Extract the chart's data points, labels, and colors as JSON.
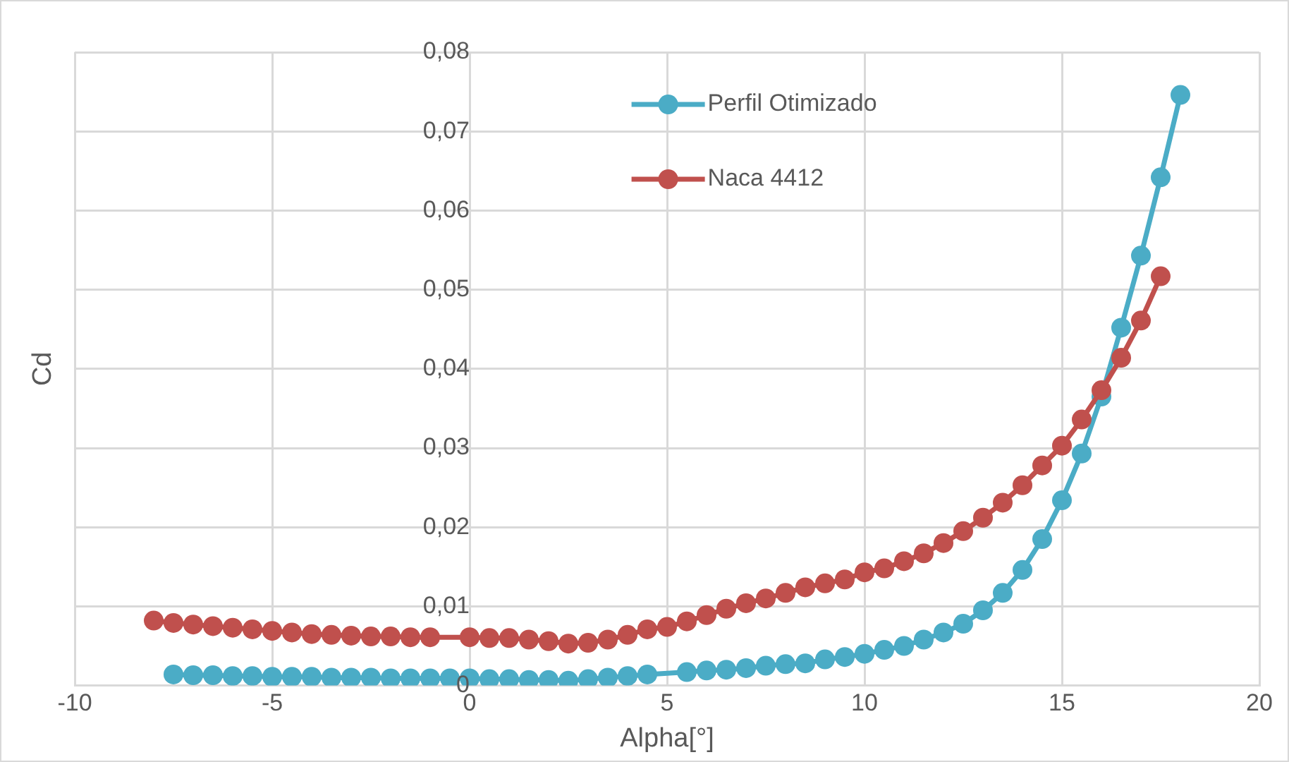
{
  "chart_data": {
    "type": "line",
    "xlabel": "Alpha[°]",
    "ylabel": "Cd",
    "xlim": [
      -10,
      20
    ],
    "xticks": [
      -10,
      -5,
      0,
      5,
      10,
      15,
      20
    ],
    "ylim": [
      0,
      0.08
    ],
    "yticks": [
      {
        "value": 0,
        "label": "0"
      },
      {
        "value": 0.01,
        "label": "0,01"
      },
      {
        "value": 0.02,
        "label": "0,02"
      },
      {
        "value": 0.03,
        "label": "0,03"
      },
      {
        "value": 0.04,
        "label": "0,04"
      },
      {
        "value": 0.05,
        "label": "0,05"
      },
      {
        "value": 0.06,
        "label": "0,06"
      },
      {
        "value": 0.07,
        "label": "0,07"
      },
      {
        "value": 0.08,
        "label": "0,08"
      }
    ],
    "grid": true,
    "legend": "top",
    "marker": "circle",
    "line_style": "solid",
    "series": [
      {
        "name": "Perfil Otimizado",
        "color": "#4bacc6",
        "x": [
          -7.5,
          -7,
          -6.5,
          -6,
          -5.5,
          -5,
          -4.5,
          -4,
          -3.5,
          -3,
          -2.5,
          -2,
          -1.5,
          -1,
          -0.5,
          0,
          0.5,
          1,
          1.5,
          2,
          2.5,
          3,
          3.5,
          4,
          4.5,
          5.5,
          6,
          6.5,
          7,
          7.5,
          8,
          8.5,
          9,
          9.5,
          10,
          10.5,
          11,
          11.5,
          12,
          12.5,
          13,
          13.5,
          14,
          14.5,
          15,
          15.5,
          16,
          16.5,
          17,
          17.5,
          18
        ],
        "values": [
          0.0014,
          0.0013,
          0.0013,
          0.0012,
          0.0012,
          0.0011,
          0.0011,
          0.0011,
          0.001,
          0.001,
          0.001,
          0.0009,
          0.0009,
          0.0009,
          0.0009,
          0.0009,
          0.0008,
          0.0008,
          0.0007,
          0.0007,
          0.0006,
          0.0008,
          0.001,
          0.0012,
          0.0014,
          0.0017,
          0.0019,
          0.002,
          0.0022,
          0.0025,
          0.0027,
          0.0028,
          0.0033,
          0.0036,
          0.004,
          0.0045,
          0.005,
          0.0058,
          0.0067,
          0.0078,
          0.0095,
          0.0117,
          0.0146,
          0.0185,
          0.0234,
          0.0293,
          0.0365,
          0.0452,
          0.0543,
          0.0642,
          0.0746
        ]
      },
      {
        "name": "Naca 4412",
        "color": "#c0504d",
        "x": [
          -8,
          -7.5,
          -7,
          -6.5,
          -6,
          -5.5,
          -5,
          -4.5,
          -4,
          -3.5,
          -3,
          -2.5,
          -2,
          -1.5,
          -1,
          0,
          0.5,
          1,
          1.5,
          2,
          2.5,
          3,
          3.5,
          4,
          4.5,
          5,
          5.5,
          6,
          6.5,
          7,
          7.5,
          8,
          8.5,
          9,
          9.5,
          10,
          10.5,
          11,
          11.5,
          12,
          12.5,
          13,
          13.5,
          14,
          14.5,
          15,
          15.5,
          16,
          16.5,
          17,
          17.5
        ],
        "values": [
          0.0082,
          0.0079,
          0.0077,
          0.0075,
          0.0073,
          0.0071,
          0.0069,
          0.0067,
          0.0065,
          0.0064,
          0.0063,
          0.0062,
          0.0062,
          0.0061,
          0.0061,
          0.0061,
          0.006,
          0.006,
          0.0058,
          0.0056,
          0.0053,
          0.0054,
          0.0058,
          0.0064,
          0.0071,
          0.0074,
          0.0081,
          0.0089,
          0.0097,
          0.0104,
          0.011,
          0.0117,
          0.0124,
          0.0129,
          0.0134,
          0.0143,
          0.0148,
          0.0157,
          0.0167,
          0.018,
          0.0195,
          0.0212,
          0.0231,
          0.0253,
          0.0278,
          0.0303,
          0.0336,
          0.0373,
          0.0414,
          0.0461,
          0.0517
        ]
      }
    ]
  }
}
